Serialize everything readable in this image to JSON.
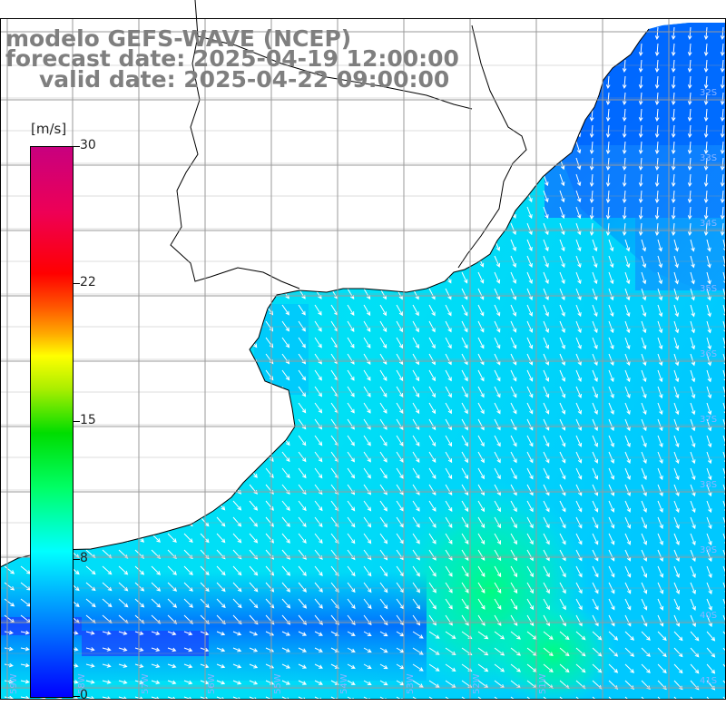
{
  "title": {
    "line1": "modelo GEFS-WAVE (NCEP)",
    "line2": "forecast date: 2025-04-19 12:00:00",
    "line3": "valid date: 2025-04-22 09:00:00"
  },
  "colorbar": {
    "unit": "[m/s]",
    "ticks": [
      "30",
      "22",
      "15",
      "8",
      "0"
    ],
    "min": 0,
    "max": 30,
    "colors": {
      "low": "#0000ff",
      "mid_low": "#00ffff",
      "mid": "#00dd00",
      "mid_high": "#ffff00",
      "high": "#ff0000",
      "top": "#c8007f"
    }
  },
  "map": {
    "lat_labels": [
      "32S",
      "33S",
      "34S",
      "35S",
      "36S",
      "37S",
      "38S",
      "39S",
      "40S",
      "41S"
    ],
    "lon_labels": [
      "59W",
      "58W",
      "57W",
      "56W",
      "55W",
      "54W",
      "53W",
      "52W",
      "51W"
    ],
    "field_colors": {
      "coastal_blue": "#1e90ff",
      "open_cyan": "#00e5ff",
      "max_green": "#00ff80"
    },
    "arrow_direction": "towards south-east",
    "land_color": "#ffffff",
    "grid_color": "#9a9a9a"
  }
}
